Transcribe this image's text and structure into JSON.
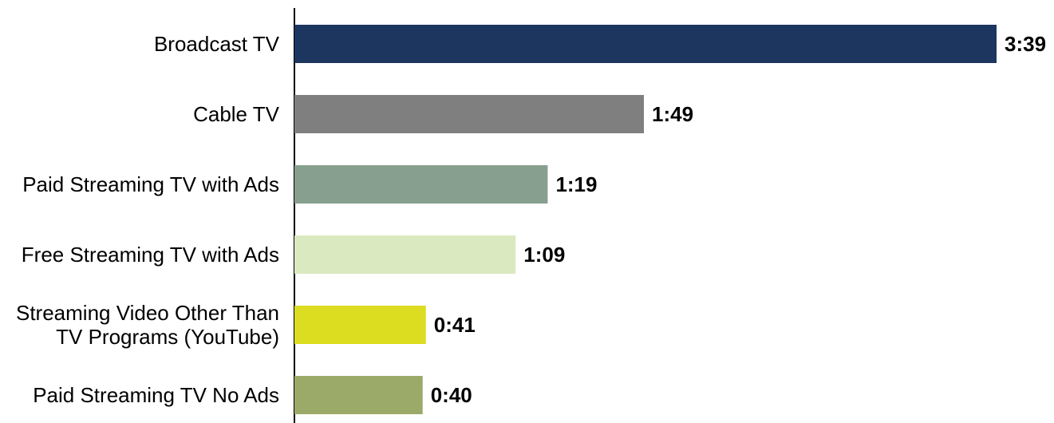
{
  "chart_data": {
    "type": "bar",
    "orientation": "horizontal",
    "categories": [
      [
        "Broadcast TV"
      ],
      [
        "Cable TV"
      ],
      [
        "Paid Streaming TV with Ads"
      ],
      [
        "Free Streaming TV with Ads"
      ],
      [
        "Streaming Video Other Than",
        "TV Programs (YouTube)"
      ],
      [
        "Paid Streaming TV No Ads"
      ]
    ],
    "values_minutes": [
      219,
      109,
      79,
      69,
      41,
      40
    ],
    "value_labels": [
      "3:39",
      "1:49",
      "1:19",
      "1:09",
      "0:41",
      "0:40"
    ],
    "colors": [
      "#1d365f",
      "#7f7f7f",
      "#879f8e",
      "#dbe9c0",
      "#dcdc20",
      "#9baa68"
    ],
    "xlim": [
      0,
      219
    ],
    "grid": false,
    "legend": false,
    "title": "",
    "xlabel": "",
    "ylabel": ""
  }
}
